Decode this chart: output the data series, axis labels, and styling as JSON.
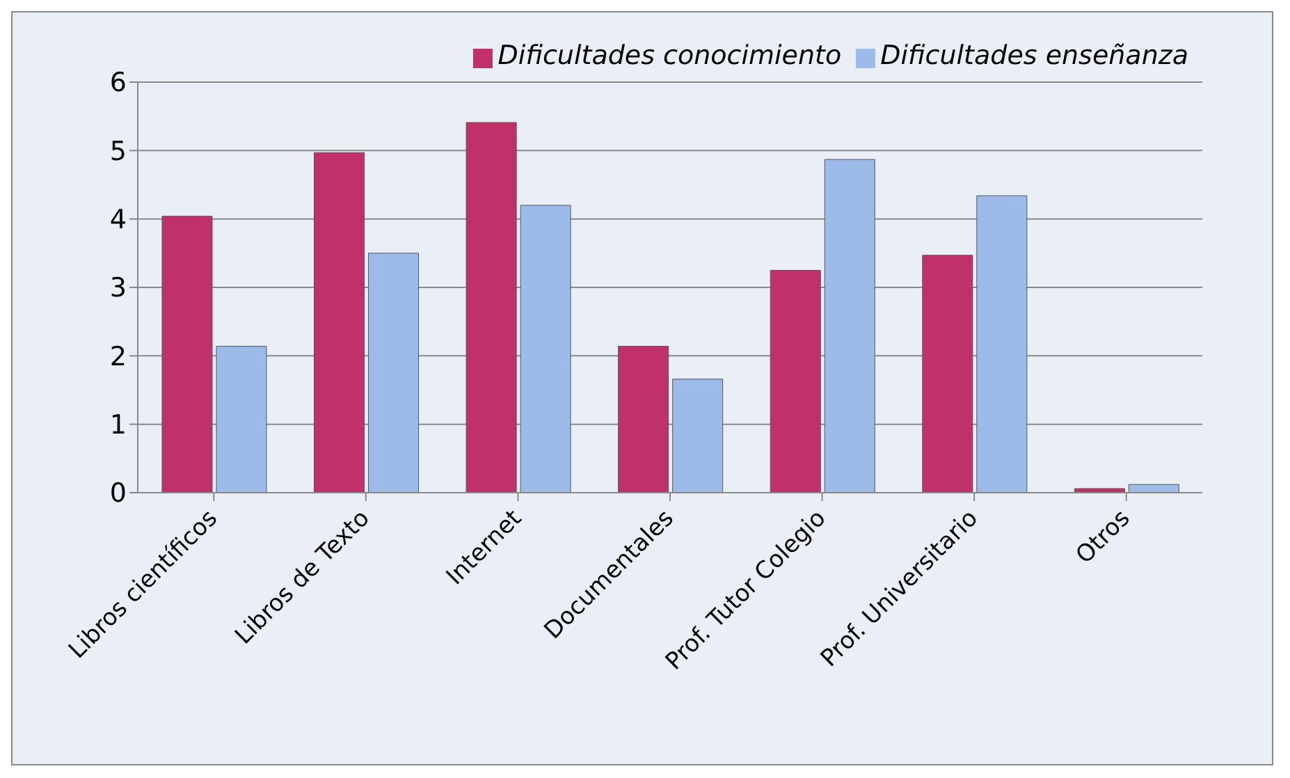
{
  "chart_data": {
    "type": "bar",
    "categories": [
      "Libros científicos",
      "Libros de Texto",
      "Internet",
      "Documentales",
      "Prof. Tutor Colegio",
      "Prof. Universitario",
      "Otros"
    ],
    "series": [
      {
        "name": "Dificultades conocimiento",
        "color": "#c0306a",
        "values": [
          4.04,
          4.97,
          5.41,
          2.14,
          3.25,
          3.47,
          0.06
        ]
      },
      {
        "name": "Dificultades enseñanza",
        "color": "#9dbbe8",
        "values": [
          2.14,
          3.5,
          4.2,
          1.66,
          4.87,
          4.34,
          0.12
        ]
      }
    ],
    "ylim": [
      0,
      6
    ],
    "yticks": [
      0,
      1,
      2,
      3,
      4,
      5,
      6
    ],
    "grid": "y",
    "legend": "top right"
  }
}
